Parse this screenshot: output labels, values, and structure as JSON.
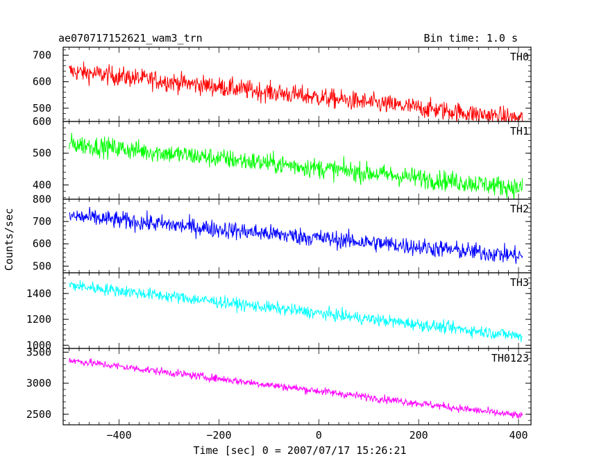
{
  "header": {
    "left_title": "ae070717152621_wam3_trn",
    "right_title": "Bin time: 1.0 s"
  },
  "chart_data": {
    "type": "line",
    "xlabel": "Time [sec] 0 = 2007/07/17 15:26:21",
    "ylabel": "Counts/sec",
    "xlim": [
      -512,
      425
    ],
    "xticks": [
      -400,
      -200,
      0,
      200,
      400
    ],
    "x_range": [
      -500,
      408
    ],
    "panels": [
      {
        "name": "TH0",
        "color": "#ff0000",
        "ylim": [
          450,
          730
        ],
        "yticks": [
          500,
          600,
          700
        ],
        "start": 640,
        "end": 460,
        "noise": 35
      },
      {
        "name": "TH1",
        "color": "#00ff00",
        "ylim": [
          355,
          600
        ],
        "yticks": [
          400,
          500,
          600
        ],
        "start": 530,
        "end": 390,
        "noise": 30
      },
      {
        "name": "TH2",
        "color": "#0000ff",
        "ylim": [
          470,
          800
        ],
        "yticks": [
          500,
          600,
          700,
          800
        ],
        "start": 725,
        "end": 545,
        "noise": 38
      },
      {
        "name": "TH3",
        "color": "#00ffff",
        "ylim": [
          975,
          1560
        ],
        "yticks": [
          1000,
          1200,
          1400
        ],
        "start": 1465,
        "end": 1070,
        "noise": 45
      },
      {
        "name": "TH0123",
        "color": "#ff00ff",
        "ylim": [
          2330,
          3560
        ],
        "yticks": [
          2500,
          3000,
          3500
        ],
        "start": 3370,
        "end": 2470,
        "noise": 60
      }
    ]
  }
}
